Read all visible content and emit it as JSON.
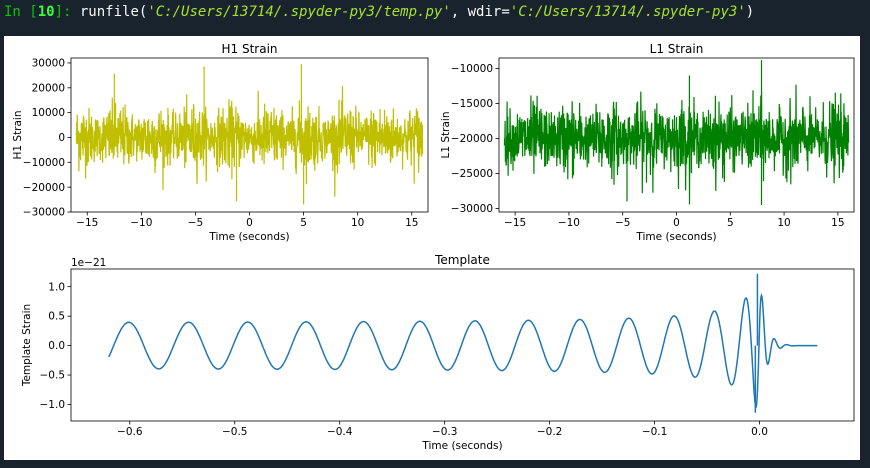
{
  "console": {
    "prompt_in": "In [",
    "prompt_num": "10",
    "prompt_close": "]: ",
    "func": "runfile(",
    "arg1": "'C:/Users/13714/.spyder-py3/temp.py'",
    "sep": ", wdir=",
    "arg2": "'C:/Users/13714/.spyder-py3'",
    "close": ")"
  },
  "chart_data": [
    {
      "type": "line",
      "title": "H1 Strain",
      "xlabel": "Time (seconds)",
      "ylabel": "H1 Strain",
      "xlim": [
        -16.5,
        16.5
      ],
      "ylim": [
        -30000,
        32000
      ],
      "xticks": [
        -15,
        -10,
        -5,
        0,
        5,
        10,
        15
      ],
      "yticks": [
        -30000,
        -20000,
        -10000,
        0,
        10000,
        20000,
        30000
      ],
      "color": "#bfbf00",
      "series": [
        {
          "x_range": [
            -16,
            16
          ],
          "mean": 0,
          "typical_amplitude": 10000,
          "max": 29500,
          "min": -27000
        }
      ]
    },
    {
      "type": "line",
      "title": "L1 Strain",
      "xlabel": "Time (seconds)",
      "ylabel": "L1 Strain",
      "xlim": [
        -16.5,
        16.5
      ],
      "ylim": [
        -30500,
        -8500
      ],
      "xticks": [
        -15,
        -10,
        -5,
        0,
        5,
        10,
        15
      ],
      "yticks": [
        -30000,
        -25000,
        -20000,
        -15000,
        -10000
      ],
      "color": "#008000",
      "series": [
        {
          "x_range": [
            -16,
            16
          ],
          "mean": -20000,
          "typical_amplitude": 4000,
          "max": -8800,
          "min": -29500
        }
      ]
    },
    {
      "type": "line",
      "title": "Template",
      "xlabel": "Time (seconds)",
      "ylabel": "Template Strain",
      "offset_text": "1e−21",
      "xlim": [
        -0.656,
        0.09
      ],
      "ylim": [
        -1.28,
        1.3
      ],
      "xticks": [
        -0.6,
        -0.5,
        -0.4,
        -0.3,
        -0.2,
        -0.1,
        0.0
      ],
      "xtick_labels": [
        "−0.6",
        "−0.5",
        "−0.4",
        "−0.3",
        "−0.2",
        "−0.1",
        "0.0"
      ],
      "yticks": [
        1.0,
        0.5,
        0.0,
        -0.5,
        -1.0
      ],
      "ytick_labels": [
        "1.0",
        "0.5",
        "0.0",
        "−0.5",
        "−1.0"
      ],
      "color": "#1f77b4",
      "series": [
        {
          "x_range": [
            -0.62,
            0.055
          ],
          "start_value": -0.18,
          "amplitude_start": 0.37,
          "peak": 1.22,
          "min": -1.14,
          "merger_time": 0.0
        }
      ]
    }
  ]
}
